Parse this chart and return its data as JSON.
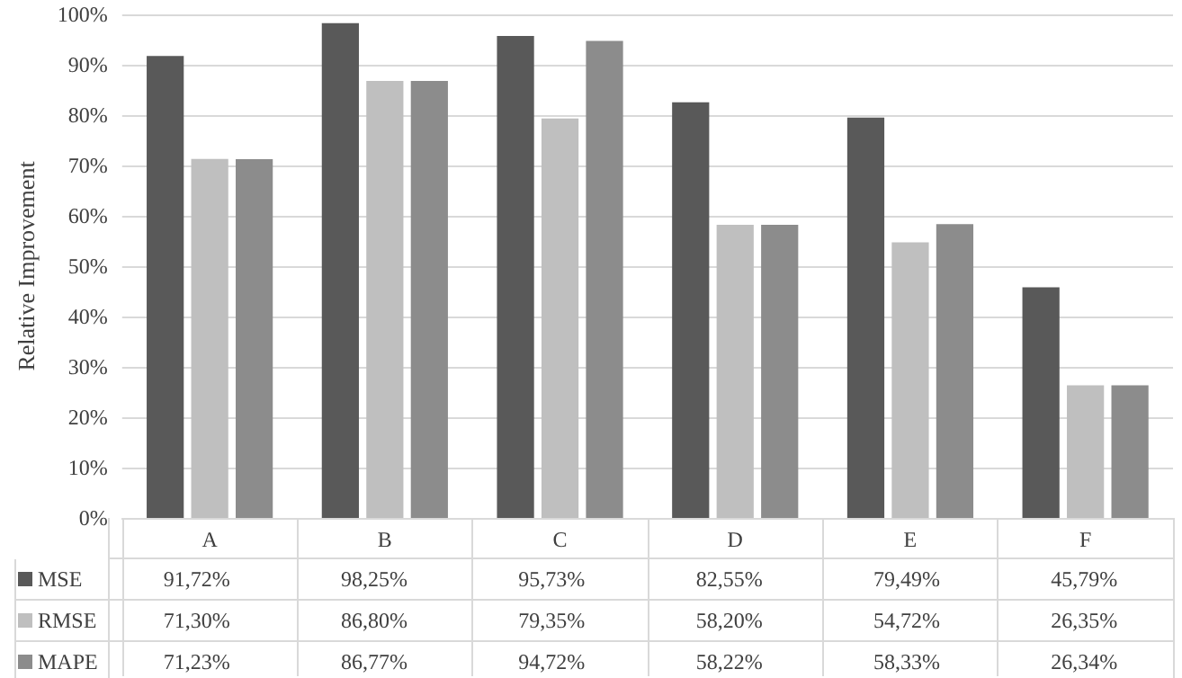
{
  "chart_data": {
    "type": "bar",
    "ylabel": "Relative Improvement",
    "categories": [
      "A",
      "B",
      "C",
      "D",
      "E",
      "F"
    ],
    "series": [
      {
        "name": "MSE",
        "color": "#595959",
        "values": [
          91.72,
          98.25,
          95.73,
          82.55,
          79.49,
          45.79
        ],
        "value_labels": [
          "91,72%",
          "98,25%",
          "95,73%",
          "82,55%",
          "79,49%",
          "45,79%"
        ]
      },
      {
        "name": "RMSE",
        "color": "#bfbfbf",
        "values": [
          71.3,
          86.8,
          79.35,
          58.2,
          54.72,
          26.35
        ],
        "value_labels": [
          "71,30%",
          "86,80%",
          "79,35%",
          "58,20%",
          "54,72%",
          "26,35%"
        ]
      },
      {
        "name": "MAPE",
        "color": "#8c8c8c",
        "values": [
          71.23,
          86.77,
          94.72,
          58.22,
          58.33,
          26.34
        ],
        "value_labels": [
          "71,23%",
          "86,77%",
          "94,72%",
          "58,22%",
          "58,33%",
          "26,34%"
        ]
      }
    ],
    "ylim": [
      0,
      100
    ],
    "yticks": [
      {
        "value": 0,
        "label": "0%"
      },
      {
        "value": 10,
        "label": "10%"
      },
      {
        "value": 20,
        "label": "20%"
      },
      {
        "value": 30,
        "label": "30%"
      },
      {
        "value": 40,
        "label": "40%"
      },
      {
        "value": 50,
        "label": "50%"
      },
      {
        "value": 60,
        "label": "60%"
      },
      {
        "value": 70,
        "label": "70%"
      },
      {
        "value": 80,
        "label": "80%"
      },
      {
        "value": 90,
        "label": "90%"
      },
      {
        "value": 100,
        "label": "100%"
      }
    ],
    "grid": "y",
    "legend": "bottom left"
  }
}
